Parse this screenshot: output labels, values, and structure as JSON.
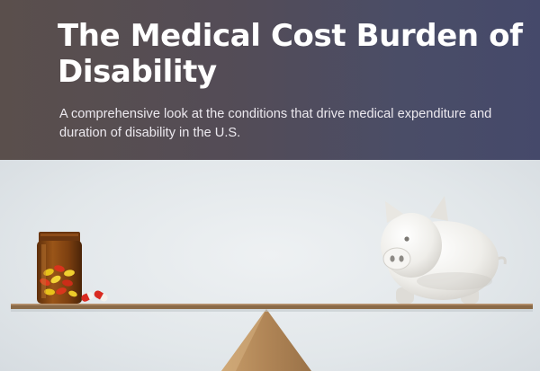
{
  "header": {
    "title": "The Medical Cost Burden of Disability",
    "subtitle": "A comprehensive look at the conditions that drive medical expenditure and duration of disability in the U.S."
  },
  "illustration": {
    "items": [
      "pill-bottle",
      "capsules",
      "seesaw-plank",
      "fulcrum",
      "piggy-bank"
    ]
  },
  "colors": {
    "header_left": "#5a4f4c",
    "header_right": "#45496a",
    "title_text": "#ffffff",
    "photo_bg": "#e2e7ea",
    "plank": "#8a6a48",
    "fulcrum": "#b98f5f",
    "bottle_amber": "#8a4a14",
    "piggy": "#f1f0ec"
  }
}
